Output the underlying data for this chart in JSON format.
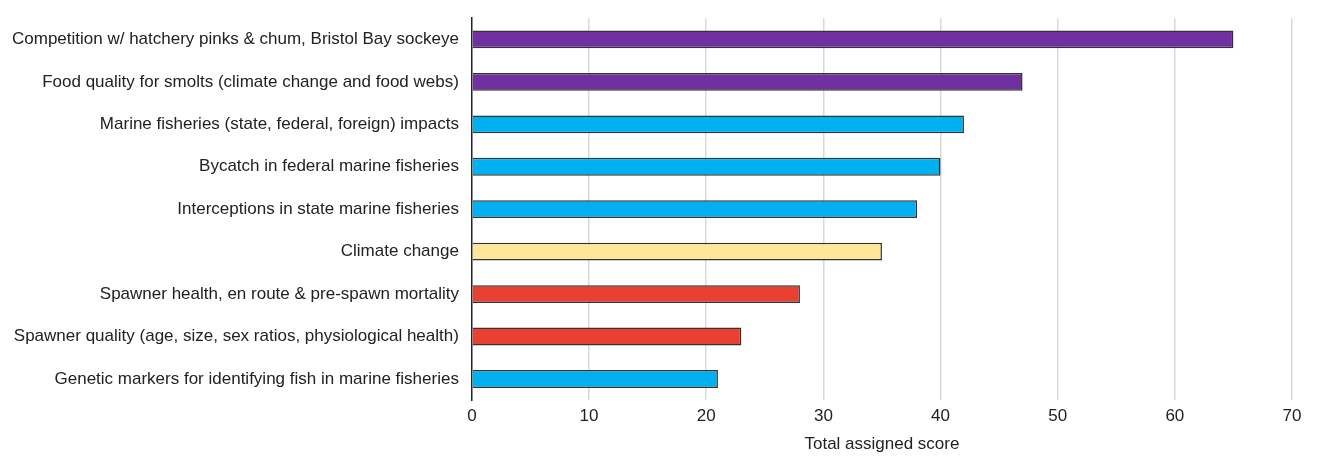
{
  "chart_data": {
    "type": "bar",
    "orientation": "horizontal",
    "xlabel": "Total assigned score",
    "categories": [
      "Competition w/ hatchery pinks & chum, Bristol Bay sockeye",
      "Food quality for smolts (climate change and food webs)",
      "Marine fisheries (state, federal, foreign) impacts",
      "Bycatch in federal marine fisheries",
      "Interceptions in state marine fisheries",
      "Climate change",
      "Spawner health, en route & pre-spawn mortality",
      "Spawner quality (age, size, sex ratios, physiological health)",
      "Genetic markers for identifying fish in marine fisheries"
    ],
    "values": [
      65,
      47,
      42,
      40,
      38,
      35,
      28,
      23,
      21
    ],
    "colors": [
      "#7030a0",
      "#7030a0",
      "#00b0f0",
      "#00b0f0",
      "#00b0f0",
      "#ffe699",
      "#e84132",
      "#e84132",
      "#00b0f0"
    ],
    "xlim": [
      0,
      70
    ],
    "xticks": [
      0,
      10,
      20,
      30,
      40,
      50,
      60,
      70
    ],
    "grid": "x",
    "legend": false
  }
}
